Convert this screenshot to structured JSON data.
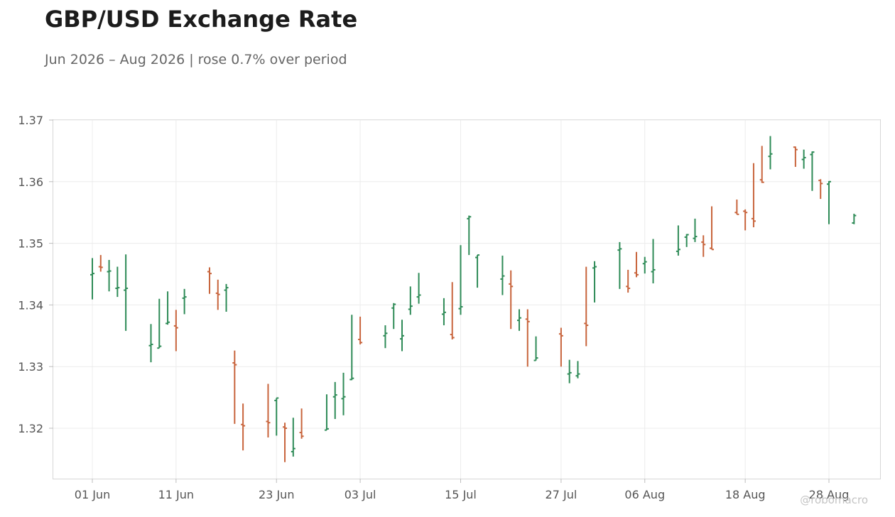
{
  "chart_data": {
    "type": "ohlc",
    "title": "GBP/USD Exchange Rate",
    "subtitle": "Jun 2026 – Aug 2026 | rose 0.7% over period",
    "xlabel": "",
    "ylabel": "",
    "ylim": [
      1.312,
      1.3705
    ],
    "y_ticks": [
      "1.32",
      "1.33",
      "1.34",
      "1.35",
      "1.36",
      "1.37"
    ],
    "x_ticks": [
      "01 Jun",
      "11 Jun",
      "23 Jun",
      "03 Jul",
      "15 Jul",
      "27 Jul",
      "06 Aug",
      "18 Aug",
      "28 Aug"
    ],
    "grid": true,
    "colors": {
      "up": "#2e8b57",
      "down": "#c8643c",
      "grid": "#ececec",
      "axis": "#d6d6d6"
    },
    "series": [
      {
        "date": "01 Jun",
        "open": 1.3449,
        "high": 1.3476,
        "low": 1.3409,
        "close": 1.3451
      },
      {
        "date": "02 Jun",
        "open": 1.3462,
        "high": 1.3481,
        "low": 1.3454,
        "close": 1.3461
      },
      {
        "date": "03 Jun",
        "open": 1.3454,
        "high": 1.3473,
        "low": 1.3422,
        "close": 1.3455
      },
      {
        "date": "04 Jun",
        "open": 1.3427,
        "high": 1.3462,
        "low": 1.3413,
        "close": 1.3428
      },
      {
        "date": "05 Jun",
        "open": 1.3424,
        "high": 1.3482,
        "low": 1.3358,
        "close": 1.3427
      },
      {
        "date": "08 Jun",
        "open": 1.3334,
        "high": 1.3369,
        "low": 1.3307,
        "close": 1.3336
      },
      {
        "date": "09 Jun",
        "open": 1.333,
        "high": 1.341,
        "low": 1.333,
        "close": 1.3333
      },
      {
        "date": "10 Jun",
        "open": 1.337,
        "high": 1.3422,
        "low": 1.3368,
        "close": 1.3372
      },
      {
        "date": "11 Jun",
        "open": 1.3366,
        "high": 1.3392,
        "low": 1.3325,
        "close": 1.3363
      },
      {
        "date": "12 Jun",
        "open": 1.3411,
        "high": 1.3426,
        "low": 1.3385,
        "close": 1.3413
      },
      {
        "date": "15 Jun",
        "open": 1.3454,
        "high": 1.3461,
        "low": 1.3418,
        "close": 1.3451
      },
      {
        "date": "16 Jun",
        "open": 1.3419,
        "high": 1.3441,
        "low": 1.3392,
        "close": 1.3417
      },
      {
        "date": "17 Jun",
        "open": 1.3424,
        "high": 1.3434,
        "low": 1.3389,
        "close": 1.3428
      },
      {
        "date": "18 Jun",
        "open": 1.3306,
        "high": 1.3326,
        "low": 1.3207,
        "close": 1.3303
      },
      {
        "date": "19 Jun",
        "open": 1.3206,
        "high": 1.324,
        "low": 1.3164,
        "close": 1.3204
      },
      {
        "date": "22 Jun",
        "open": 1.3211,
        "high": 1.3272,
        "low": 1.3185,
        "close": 1.3209
      },
      {
        "date": "23 Jun",
        "open": 1.3245,
        "high": 1.3249,
        "low": 1.3188,
        "close": 1.3249
      },
      {
        "date": "24 Jun",
        "open": 1.3202,
        "high": 1.3209,
        "low": 1.3145,
        "close": 1.32
      },
      {
        "date": "25 Jun",
        "open": 1.3162,
        "high": 1.3217,
        "low": 1.3154,
        "close": 1.3167
      },
      {
        "date": "26 Jun",
        "open": 1.3193,
        "high": 1.3232,
        "low": 1.3183,
        "close": 1.3187
      },
      {
        "date": "29 Jun",
        "open": 1.3197,
        "high": 1.3255,
        "low": 1.3197,
        "close": 1.3199
      },
      {
        "date": "30 Jun",
        "open": 1.3251,
        "high": 1.3275,
        "low": 1.3215,
        "close": 1.3254
      },
      {
        "date": "01 Jul",
        "open": 1.3248,
        "high": 1.329,
        "low": 1.3221,
        "close": 1.3251
      },
      {
        "date": "02 Jul",
        "open": 1.3279,
        "high": 1.3384,
        "low": 1.3278,
        "close": 1.3281
      },
      {
        "date": "03 Jul",
        "open": 1.3344,
        "high": 1.3381,
        "low": 1.3336,
        "close": 1.3339
      },
      {
        "date": "06 Jul",
        "open": 1.335,
        "high": 1.3367,
        "low": 1.333,
        "close": 1.3354
      },
      {
        "date": "07 Jul",
        "open": 1.3395,
        "high": 1.3403,
        "low": 1.3361,
        "close": 1.3401
      },
      {
        "date": "08 Jul",
        "open": 1.3345,
        "high": 1.3376,
        "low": 1.3325,
        "close": 1.335
      },
      {
        "date": "09 Jul",
        "open": 1.3393,
        "high": 1.343,
        "low": 1.3384,
        "close": 1.3398
      },
      {
        "date": "10 Jul",
        "open": 1.3413,
        "high": 1.3452,
        "low": 1.3402,
        "close": 1.3416
      },
      {
        "date": "13 Jul",
        "open": 1.3385,
        "high": 1.3411,
        "low": 1.3367,
        "close": 1.3388
      },
      {
        "date": "14 Jul",
        "open": 1.3352,
        "high": 1.3437,
        "low": 1.3344,
        "close": 1.3347
      },
      {
        "date": "15 Jul",
        "open": 1.3394,
        "high": 1.3497,
        "low": 1.3384,
        "close": 1.3397
      },
      {
        "date": "16 Jul",
        "open": 1.354,
        "high": 1.3545,
        "low": 1.3481,
        "close": 1.3543
      },
      {
        "date": "17 Jul",
        "open": 1.3477,
        "high": 1.3481,
        "low": 1.3428,
        "close": 1.3481
      },
      {
        "date": "20 Jul",
        "open": 1.3442,
        "high": 1.348,
        "low": 1.3416,
        "close": 1.3447
      },
      {
        "date": "21 Jul",
        "open": 1.3434,
        "high": 1.3456,
        "low": 1.3361,
        "close": 1.343
      },
      {
        "date": "22 Jul",
        "open": 1.3375,
        "high": 1.3393,
        "low": 1.3358,
        "close": 1.3379
      },
      {
        "date": "23 Jul",
        "open": 1.3377,
        "high": 1.3393,
        "low": 1.33,
        "close": 1.3373
      },
      {
        "date": "24 Jul",
        "open": 1.331,
        "high": 1.3349,
        "low": 1.331,
        "close": 1.3314
      },
      {
        "date": "27 Jul",
        "open": 1.3353,
        "high": 1.3363,
        "low": 1.33,
        "close": 1.335
      },
      {
        "date": "28 Jul",
        "open": 1.3288,
        "high": 1.3311,
        "low": 1.3273,
        "close": 1.329
      },
      {
        "date": "29 Jul",
        "open": 1.3285,
        "high": 1.3309,
        "low": 1.3281,
        "close": 1.3288
      },
      {
        "date": "30 Jul",
        "open": 1.337,
        "high": 1.3462,
        "low": 1.3333,
        "close": 1.3367
      },
      {
        "date": "31 Jul",
        "open": 1.346,
        "high": 1.3471,
        "low": 1.3404,
        "close": 1.3462
      },
      {
        "date": "03 Aug",
        "open": 1.3489,
        "high": 1.3502,
        "low": 1.3426,
        "close": 1.3491
      },
      {
        "date": "04 Aug",
        "open": 1.343,
        "high": 1.3457,
        "low": 1.342,
        "close": 1.3427
      },
      {
        "date": "05 Aug",
        "open": 1.3452,
        "high": 1.3486,
        "low": 1.3445,
        "close": 1.3449
      },
      {
        "date": "06 Aug",
        "open": 1.3467,
        "high": 1.3478,
        "low": 1.3451,
        "close": 1.347
      },
      {
        "date": "07 Aug",
        "open": 1.3454,
        "high": 1.3507,
        "low": 1.3435,
        "close": 1.3457
      },
      {
        "date": "10 Aug",
        "open": 1.3487,
        "high": 1.3529,
        "low": 1.348,
        "close": 1.349
      },
      {
        "date": "11 Aug",
        "open": 1.351,
        "high": 1.3515,
        "low": 1.3494,
        "close": 1.3514
      },
      {
        "date": "12 Aug",
        "open": 1.3508,
        "high": 1.354,
        "low": 1.3502,
        "close": 1.3511
      },
      {
        "date": "13 Aug",
        "open": 1.3502,
        "high": 1.3513,
        "low": 1.3478,
        "close": 1.3498
      },
      {
        "date": "14 Aug",
        "open": 1.3492,
        "high": 1.356,
        "low": 1.349,
        "close": 1.349
      },
      {
        "date": "17 Aug",
        "open": 1.355,
        "high": 1.3571,
        "low": 1.3547,
        "close": 1.3547
      },
      {
        "date": "18 Aug",
        "open": 1.3552,
        "high": 1.3555,
        "low": 1.3521,
        "close": 1.355
      },
      {
        "date": "19 Aug",
        "open": 1.354,
        "high": 1.363,
        "low": 1.3526,
        "close": 1.3536
      },
      {
        "date": "20 Aug",
        "open": 1.3603,
        "high": 1.3658,
        "low": 1.3598,
        "close": 1.3599
      },
      {
        "date": "21 Aug",
        "open": 1.3641,
        "high": 1.3674,
        "low": 1.362,
        "close": 1.3645
      },
      {
        "date": "24 Aug",
        "open": 1.3656,
        "high": 1.3657,
        "low": 1.3624,
        "close": 1.3652
      },
      {
        "date": "25 Aug",
        "open": 1.3636,
        "high": 1.3652,
        "low": 1.3621,
        "close": 1.3639
      },
      {
        "date": "26 Aug",
        "open": 1.3644,
        "high": 1.3649,
        "low": 1.3585,
        "close": 1.3648
      },
      {
        "date": "27 Aug",
        "open": 1.3602,
        "high": 1.3604,
        "low": 1.3572,
        "close": 1.3597
      },
      {
        "date": "28 Aug",
        "open": 1.3596,
        "high": 1.3601,
        "low": 1.3531,
        "close": 1.36
      },
      {
        "date": "31 Aug",
        "open": 1.3533,
        "high": 1.3548,
        "low": 1.3531,
        "close": 1.3545
      }
    ]
  },
  "watermark": "@robomacro"
}
